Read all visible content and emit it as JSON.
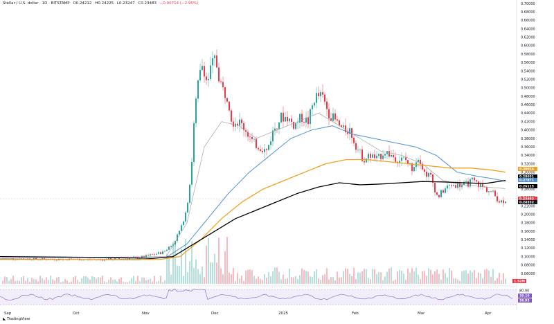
{
  "header": {
    "symbol": "Stellar / U.S. dollar · 1D · BITSTAMP",
    "open": "O0.24212",
    "high": "H0.24225",
    "low": "L0.23247",
    "close": "C0.23483",
    "change": "−0.00714 (−2.95%)"
  },
  "branding": "TradingView",
  "colors": {
    "up": "#26a69a",
    "down": "#f23645",
    "ma_fast": "#a0a0a0",
    "ma_blue": "#4a8fd6",
    "ma_orange": "#f0a020",
    "ma_black": "#000000",
    "rsi": "#7e57c2"
  },
  "chart_data": {
    "type": "candlestick",
    "ylim": [
      0,
      0.7
    ],
    "y_ticks": [
      "0.70000",
      "0.68000",
      "0.66000",
      "0.64000",
      "0.62000",
      "0.60000",
      "0.58000",
      "0.56000",
      "0.54000",
      "0.52000",
      "0.50000",
      "0.48000",
      "0.46000",
      "0.44000",
      "0.42000",
      "0.40000",
      "0.38000",
      "0.36000",
      "0.34000",
      "0.32000",
      "0.30000",
      "0.28000",
      "0.26000",
      "0.24000",
      "0.22000",
      "0.20000",
      "0.18000",
      "0.16000",
      "0.14000",
      "0.12000",
      "0.10000",
      "0.08000",
      "0.06000"
    ],
    "x_ticks": [
      "Sep",
      "Oct",
      "Nov",
      "Dec",
      "2025",
      "Feb",
      "Mar",
      "Apr"
    ],
    "price_labels": [
      {
        "text": "0.30024",
        "value": 0.30024,
        "color": "#f0a020"
      },
      {
        "text": "0.28051",
        "value": 0.28051,
        "color": "#000000"
      },
      {
        "text": "0.27871",
        "value": 0.27871,
        "color": "#4a8fd6"
      },
      {
        "text": "0.26115",
        "value": 0.26115,
        "color": "#000000"
      },
      {
        "text": "0.23483",
        "value": 0.23483,
        "color": "#f23645"
      },
      {
        "text": "0.24332",
        "value": 0.24332,
        "color": "#131722"
      }
    ],
    "volume_label": "1.52M",
    "rsi_ticks": [
      "80.00",
      "39.10",
      "38.93"
    ],
    "close_path": [
      [
        0,
        0.096
      ],
      [
        70,
        0.094
      ],
      [
        150,
        0.093
      ],
      [
        200,
        0.097
      ],
      [
        235,
        0.11
      ],
      [
        250,
        0.13
      ],
      [
        262,
        0.17
      ],
      [
        270,
        0.22
      ],
      [
        276,
        0.3
      ],
      [
        281,
        0.44
      ],
      [
        287,
        0.52
      ],
      [
        293,
        0.56
      ],
      [
        299,
        0.51
      ],
      [
        305,
        0.55
      ],
      [
        311,
        0.57
      ],
      [
        317,
        0.52
      ],
      [
        323,
        0.49
      ],
      [
        329,
        0.48
      ],
      [
        335,
        0.42
      ],
      [
        345,
        0.42
      ],
      [
        355,
        0.4
      ],
      [
        365,
        0.37
      ],
      [
        375,
        0.36
      ],
      [
        385,
        0.35
      ],
      [
        395,
        0.4
      ],
      [
        405,
        0.43
      ],
      [
        415,
        0.43
      ],
      [
        425,
        0.41
      ],
      [
        435,
        0.43
      ],
      [
        445,
        0.42
      ],
      [
        455,
        0.48
      ],
      [
        465,
        0.48
      ],
      [
        475,
        0.44
      ],
      [
        485,
        0.42
      ],
      [
        495,
        0.4
      ],
      [
        505,
        0.4
      ],
      [
        515,
        0.36
      ],
      [
        525,
        0.33
      ],
      [
        535,
        0.34
      ],
      [
        545,
        0.33
      ],
      [
        555,
        0.35
      ],
      [
        565,
        0.34
      ],
      [
        575,
        0.33
      ],
      [
        585,
        0.33
      ],
      [
        595,
        0.31
      ],
      [
        605,
        0.34
      ],
      [
        612,
        0.3
      ],
      [
        622,
        0.29
      ],
      [
        632,
        0.24
      ],
      [
        642,
        0.26
      ],
      [
        652,
        0.27
      ],
      [
        662,
        0.27
      ],
      [
        672,
        0.27
      ],
      [
        682,
        0.28
      ],
      [
        692,
        0.27
      ],
      [
        702,
        0.26
      ],
      [
        712,
        0.25
      ],
      [
        722,
        0.23
      ],
      [
        730,
        0.2348
      ]
    ],
    "ma_blue": [
      [
        0,
        0.094
      ],
      [
        200,
        0.092
      ],
      [
        240,
        0.098
      ],
      [
        270,
        0.13
      ],
      [
        300,
        0.19
      ],
      [
        330,
        0.25
      ],
      [
        360,
        0.3
      ],
      [
        390,
        0.34
      ],
      [
        420,
        0.38
      ],
      [
        450,
        0.4
      ],
      [
        480,
        0.41
      ],
      [
        510,
        0.39
      ],
      [
        540,
        0.38
      ],
      [
        570,
        0.37
      ],
      [
        600,
        0.36
      ],
      [
        630,
        0.34
      ],
      [
        660,
        0.3
      ],
      [
        690,
        0.29
      ],
      [
        710,
        0.285
      ],
      [
        730,
        0.2787
      ]
    ],
    "ma_orange": [
      [
        0,
        0.093
      ],
      [
        230,
        0.093
      ],
      [
        260,
        0.1
      ],
      [
        290,
        0.14
      ],
      [
        320,
        0.19
      ],
      [
        350,
        0.23
      ],
      [
        380,
        0.26
      ],
      [
        410,
        0.28
      ],
      [
        440,
        0.3
      ],
      [
        470,
        0.32
      ],
      [
        500,
        0.33
      ],
      [
        530,
        0.33
      ],
      [
        560,
        0.325
      ],
      [
        590,
        0.32
      ],
      [
        620,
        0.315
      ],
      [
        650,
        0.31
      ],
      [
        680,
        0.31
      ],
      [
        710,
        0.305
      ],
      [
        730,
        0.3002
      ]
    ],
    "ma_black": [
      [
        0,
        0.1
      ],
      [
        150,
        0.098
      ],
      [
        220,
        0.096
      ],
      [
        250,
        0.1
      ],
      [
        280,
        0.13
      ],
      [
        310,
        0.16
      ],
      [
        340,
        0.19
      ],
      [
        370,
        0.21
      ],
      [
        400,
        0.23
      ],
      [
        430,
        0.25
      ],
      [
        460,
        0.265
      ],
      [
        490,
        0.275
      ],
      [
        520,
        0.27
      ],
      [
        550,
        0.272
      ],
      [
        580,
        0.275
      ],
      [
        610,
        0.278
      ],
      [
        640,
        0.277
      ],
      [
        670,
        0.275
      ],
      [
        700,
        0.273
      ],
      [
        730,
        0.2805
      ]
    ],
    "ma_fast": [
      [
        0,
        0.096
      ],
      [
        240,
        0.1
      ],
      [
        270,
        0.18
      ],
      [
        295,
        0.36
      ],
      [
        320,
        0.42
      ],
      [
        345,
        0.41
      ],
      [
        370,
        0.38
      ],
      [
        400,
        0.4
      ],
      [
        430,
        0.42
      ],
      [
        460,
        0.44
      ],
      [
        490,
        0.41
      ],
      [
        520,
        0.38
      ],
      [
        550,
        0.35
      ],
      [
        580,
        0.34
      ],
      [
        610,
        0.32
      ],
      [
        640,
        0.28
      ],
      [
        670,
        0.27
      ],
      [
        700,
        0.265
      ],
      [
        730,
        0.2612
      ]
    ]
  }
}
